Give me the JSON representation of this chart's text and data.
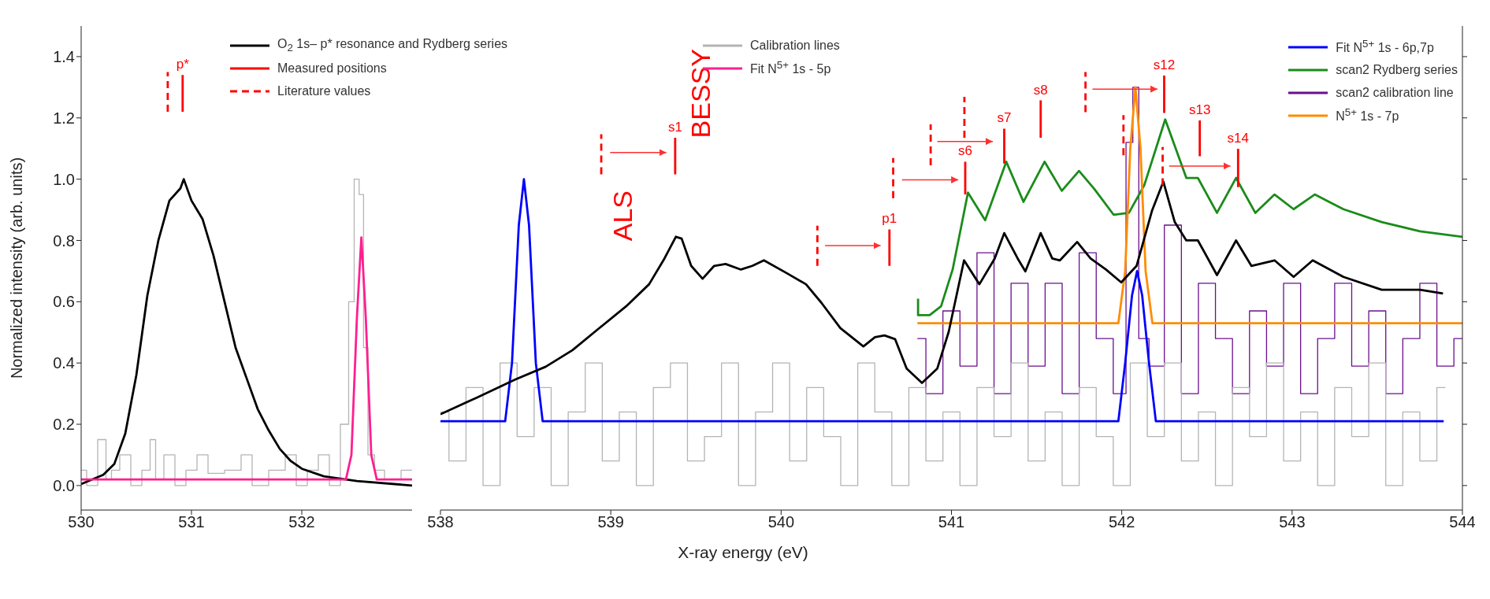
{
  "chart_data": [
    {
      "type": "line",
      "ylabel": "Normalized intensity (arb. units)",
      "xlim": [
        530,
        533
      ],
      "xticks": [
        530,
        531,
        532
      ],
      "ylim": [
        -0.08,
        1.5
      ],
      "yticks": [
        {
          "value": 0,
          "label": "0.0"
        },
        {
          "value": 0.2,
          "label": "0.2"
        },
        {
          "value": 0.4,
          "label": "0.4"
        },
        {
          "value": 0.6,
          "label": "0.6"
        },
        {
          "value": 0.8,
          "label": "0.8"
        },
        {
          "value": 1,
          "label": "1.0"
        },
        {
          "value": 1.2,
          "label": "1.2"
        },
        {
          "value": 1.4,
          "label": "1.4"
        }
      ],
      "legend": "top",
      "series": [
        {
          "name": "O$_{2}$ 1s– p* resonance and Rydberg series",
          "color": "#000000",
          "x": [
            530.0,
            530.2,
            530.3,
            530.4,
            530.5,
            530.6,
            530.7,
            530.8,
            530.9,
            530.93,
            531.0,
            531.1,
            531.2,
            531.3,
            531.4,
            531.5,
            531.6,
            531.7,
            531.8,
            531.9,
            532.0,
            532.2,
            532.5,
            533.0
          ],
          "values": [
            0.005,
            0.035,
            0.07,
            0.17,
            0.36,
            0.62,
            0.8,
            0.93,
            0.97,
            1.0,
            0.93,
            0.87,
            0.75,
            0.6,
            0.45,
            0.35,
            0.25,
            0.18,
            0.12,
            0.08,
            0.055,
            0.03,
            0.015,
            0.0
          ]
        },
        {
          "name": "Measured positions",
          "color": "#ff0000",
          "x": [
            530.92,
            530.92
          ],
          "values": [
            1.22,
            1.34
          ],
          "value_labels": [
            null,
            "p*"
          ]
        },
        {
          "name": "Literature values",
          "color": "#ff0000",
          "line_style": "dashed",
          "x": [
            530.785,
            530.785
          ],
          "values": [
            1.22,
            1.35
          ]
        },
        {
          "name": "Calibration lines",
          "type": "step",
          "color": "#b4b4b4",
          "x": [
            530,
            530.1,
            530.2,
            530.25,
            530.3,
            530.4,
            530.5,
            530.6,
            530.65,
            530.7,
            530.8,
            530.9,
            531.0,
            531.1,
            531.2,
            531.4,
            531.5,
            531.6,
            531.8,
            531.9,
            532.0,
            532.1,
            532.2,
            532.3,
            532.4,
            532.45,
            532.5,
            532.54,
            532.58,
            532.62,
            532.7,
            532.8,
            533
          ],
          "values": [
            0.05,
            0.0,
            0.15,
            0.02,
            0.05,
            0.1,
            0.0,
            0.05,
            0.15,
            0.02,
            0.1,
            0.0,
            0.05,
            0.1,
            0.04,
            0.05,
            0.1,
            0.0,
            0.05,
            0.1,
            0.0,
            0.05,
            0.1,
            0.0,
            0.2,
            0.6,
            1.0,
            0.95,
            0.45,
            0.1,
            0.05,
            0.02,
            0.05
          ]
        },
        {
          "name": "Fit  N$^{5+}$ 1s - 5p",
          "color": "#ff1f8f",
          "x": [
            530,
            532.4,
            532.45,
            532.5,
            532.54,
            532.58,
            532.63,
            532.68,
            533
          ],
          "values": [
            0.02,
            0.02,
            0.1,
            0.55,
            0.81,
            0.55,
            0.1,
            0.02,
            0.02
          ]
        }
      ]
    },
    {
      "type": "line",
      "xlabel": "X-ray energy (eV)",
      "xlim": [
        538,
        544
      ],
      "xticks": [
        538,
        539,
        540,
        541,
        542,
        543,
        544
      ],
      "ylim": [
        -0.08,
        1.5
      ],
      "yticks": [
        0,
        0.2,
        0.4,
        0.6,
        0.8,
        1,
        1.2,
        1.4
      ],
      "tick_labels": "x",
      "legend": "top right",
      "annotations": [
        "ALS",
        "BESSY"
      ],
      "series": [
        {
          "name": "Fit  N$^{5+}$ 1s - 6p,7p",
          "color": "#0000ff",
          "x": [
            538,
            538.38,
            538.42,
            538.46,
            538.49,
            538.52,
            538.56,
            538.6,
            541.98,
            542.02,
            542.06,
            542.09,
            542.12,
            542.16,
            542.2,
            543.89
          ],
          "values": [
            0.21,
            0.21,
            0.4,
            0.85,
            1.0,
            0.85,
            0.4,
            0.21,
            0.21,
            0.4,
            0.62,
            0.7,
            0.62,
            0.4,
            0.21,
            0.21
          ]
        },
        {
          "name": "scan2 Rydberg series",
          "color": "#1a8c1a",
          "x": [
            540.804,
            540.804,
            540.872,
            540.939,
            541.007,
            541.097,
            541.198,
            541.322,
            541.423,
            541.547,
            541.648,
            541.749,
            541.839,
            541.952,
            542.042,
            542.132,
            542.255,
            542.379,
            542.447,
            542.559,
            542.671,
            542.784,
            542.897,
            543.009,
            543.133,
            543.301,
            543.526,
            543.751,
            544.0
          ],
          "values": [
            0.61,
            0.556,
            0.556,
            0.585,
            0.705,
            0.956,
            0.866,
            1.057,
            0.926,
            1.057,
            0.962,
            1.027,
            0.968,
            0.884,
            0.89,
            0.98,
            1.195,
            1.004,
            1.004,
            0.89,
            1.004,
            0.89,
            0.95,
            0.902,
            0.95,
            0.902,
            0.86,
            0.83,
            0.812
          ]
        },
        {
          "name": "scan2 calibration line",
          "type": "step",
          "color": "#6a0f8e",
          "x": [
            540.8,
            540.9,
            541.0,
            541.1,
            541.2,
            541.3,
            541.4,
            541.5,
            541.6,
            541.7,
            541.8,
            541.9,
            542.0,
            542.05,
            542.08,
            542.12,
            542.2,
            542.3,
            542.4,
            542.5,
            542.6,
            542.7,
            542.8,
            542.9,
            543.0,
            543.1,
            543.2,
            543.3,
            543.4,
            543.5,
            543.6,
            543.7,
            543.8,
            543.9,
            544.0
          ],
          "values": [
            0.48,
            0.3,
            0.57,
            0.39,
            0.76,
            0.3,
            0.66,
            0.39,
            0.66,
            0.3,
            0.76,
            0.48,
            0.3,
            1.12,
            1.3,
            0.48,
            0.39,
            0.85,
            0.3,
            0.66,
            0.48,
            0.3,
            0.57,
            0.39,
            0.66,
            0.3,
            0.48,
            0.66,
            0.39,
            0.57,
            0.3,
            0.48,
            0.66,
            0.39,
            0.48
          ]
        },
        {
          "name": "N$^{5+}$ 1s - 7p",
          "color": "#ff8c00",
          "x": [
            540.8,
            541.98,
            542.02,
            542.05,
            542.08,
            542.11,
            542.14,
            542.18,
            544
          ],
          "values": [
            0.53,
            0.53,
            0.7,
            1.1,
            1.3,
            1.1,
            0.7,
            0.53,
            0.53
          ]
        },
        {
          "type": "step",
          "color": "#b4b4b4",
          "x": [
            538.0,
            538.1,
            538.2,
            538.3,
            538.4,
            538.5,
            538.6,
            538.7,
            538.8,
            538.9,
            539.0,
            539.1,
            539.2,
            539.3,
            539.4,
            539.5,
            539.6,
            539.7,
            539.8,
            539.9,
            540.0,
            540.1,
            540.2,
            540.3,
            540.4,
            540.5,
            540.6,
            540.7,
            540.8,
            540.9,
            541.0,
            541.1,
            541.2,
            541.3,
            541.4,
            541.5,
            541.6,
            541.7,
            541.8,
            541.9,
            542.0,
            542.1,
            542.2,
            542.3,
            542.4,
            542.5,
            542.6,
            542.7,
            542.8,
            542.9,
            543.0,
            543.1,
            543.2,
            543.3,
            543.4,
            543.5,
            543.6,
            543.7,
            543.8,
            543.9
          ],
          "values": [
            0.24,
            0.08,
            0.32,
            0.0,
            0.4,
            0.16,
            0.32,
            0.0,
            0.24,
            0.4,
            0.08,
            0.24,
            0.0,
            0.32,
            0.4,
            0.08,
            0.16,
            0.4,
            0.0,
            0.24,
            0.4,
            0.08,
            0.32,
            0.16,
            0.0,
            0.4,
            0.24,
            0.0,
            0.32,
            0.08,
            0.24,
            0.0,
            0.32,
            0.16,
            0.4,
            0.08,
            0.24,
            0.0,
            0.32,
            0.16,
            0.0,
            0.4,
            0.16,
            0.4,
            0.08,
            0.24,
            0.0,
            0.32,
            0.16,
            0.4,
            0.08,
            0.24,
            0.0,
            0.32,
            0.16,
            0.4,
            0.0,
            0.24,
            0.08,
            0.32
          ]
        },
        {
          "color": "#000000",
          "x": [
            538.0,
            538.213,
            538.438,
            538.618,
            538.775,
            538.933,
            539.09,
            539.225,
            539.315,
            539.382,
            539.416,
            539.472,
            539.539,
            539.607,
            539.674,
            539.764,
            539.831,
            539.899,
            540.034,
            540.146,
            540.236,
            540.348,
            540.483,
            540.551,
            540.607,
            540.669,
            540.737,
            540.827,
            540.917,
            540.984,
            541.074,
            541.164,
            541.254,
            541.31,
            541.389,
            541.434,
            541.524,
            541.592,
            541.637,
            541.738,
            541.817,
            541.907,
            541.997,
            542.087,
            542.177,
            542.244,
            542.311,
            542.379,
            542.447,
            542.559,
            542.671,
            542.761,
            542.897,
            543.009,
            543.121,
            543.301,
            543.526,
            543.751,
            543.886
          ],
          "values": [
            0.233,
            0.287,
            0.346,
            0.388,
            0.442,
            0.514,
            0.585,
            0.657,
            0.741,
            0.812,
            0.806,
            0.717,
            0.675,
            0.717,
            0.723,
            0.705,
            0.717,
            0.735,
            0.693,
            0.657,
            0.597,
            0.514,
            0.454,
            0.484,
            0.49,
            0.478,
            0.382,
            0.335,
            0.382,
            0.502,
            0.735,
            0.657,
            0.741,
            0.824,
            0.741,
            0.699,
            0.824,
            0.741,
            0.735,
            0.795,
            0.741,
            0.705,
            0.663,
            0.717,
            0.896,
            0.992,
            0.86,
            0.8,
            0.8,
            0.687,
            0.8,
            0.717,
            0.735,
            0.681,
            0.735,
            0.681,
            0.639,
            0.639,
            0.627
          ]
        },
        {
          "color": "#ff0000",
          "x": [
            539.378,
            539.378,
            null,
            540.636,
            540.636,
            null,
            541.081,
            541.081,
            null,
            541.31,
            541.31,
            null,
            541.524,
            541.524,
            null,
            542.249,
            542.249,
            null,
            542.458,
            542.458,
            null,
            542.683,
            542.683
          ],
          "values": [
            1.016,
            1.135,
            null,
            0.717,
            0.836,
            null,
            0.95,
            1.057,
            null,
            1.051,
            1.165,
            null,
            1.135,
            1.257,
            null,
            1.216,
            1.338,
            null,
            1.075,
            1.192,
            null,
            0.974,
            1.099
          ],
          "value_labels": [
            null,
            "s1",
            null,
            null,
            "p1",
            null,
            null,
            "s6",
            null,
            null,
            "s7",
            null,
            null,
            "s8",
            null,
            null,
            "s12",
            null,
            null,
            "s13",
            null,
            null,
            "s14"
          ]
        },
        {
          "color": "#ff0000",
          "line_style": "dashed",
          "x": [
            538.944,
            538.944,
            null,
            540.213,
            540.213,
            null,
            540.658,
            540.658,
            null,
            540.878,
            540.878,
            null,
            541.076,
            541.076,
            null,
            541.787,
            541.787,
            null,
            542.01,
            542.01,
            null,
            542.24,
            542.24
          ],
          "values": [
            1.016,
            1.147,
            null,
            0.717,
            0.848,
            null,
            0.938,
            1.069,
            null,
            1.045,
            1.179,
            null,
            1.135,
            1.269,
            null,
            1.219,
            1.35,
            null,
            1.078,
            1.209,
            null,
            0.98,
            1.105
          ]
        },
        {
          "color": "#ff3030",
          "x": [
            538.996,
            539.326
          ],
          "values": [
            1.087,
            1.087
          ]
        },
        {
          "color": "#ff3030",
          "x": [
            540.258,
            540.584
          ],
          "values": [
            0.783,
            0.783
          ]
        },
        {
          "color": "#ff3030",
          "x": [
            540.71,
            541.04
          ],
          "values": [
            0.998,
            0.998
          ]
        },
        {
          "color": "#ff3030",
          "x": [
            540.917,
            541.243
          ],
          "values": [
            1.123,
            1.123
          ]
        },
        {
          "color": "#ff3030",
          "x": [
            541.828,
            542.21
          ],
          "values": [
            1.294,
            1.294
          ]
        },
        {
          "color": "#ff3030",
          "x": [
            542.278,
            542.638
          ],
          "values": [
            1.043,
            1.043
          ]
        }
      ]
    }
  ]
}
